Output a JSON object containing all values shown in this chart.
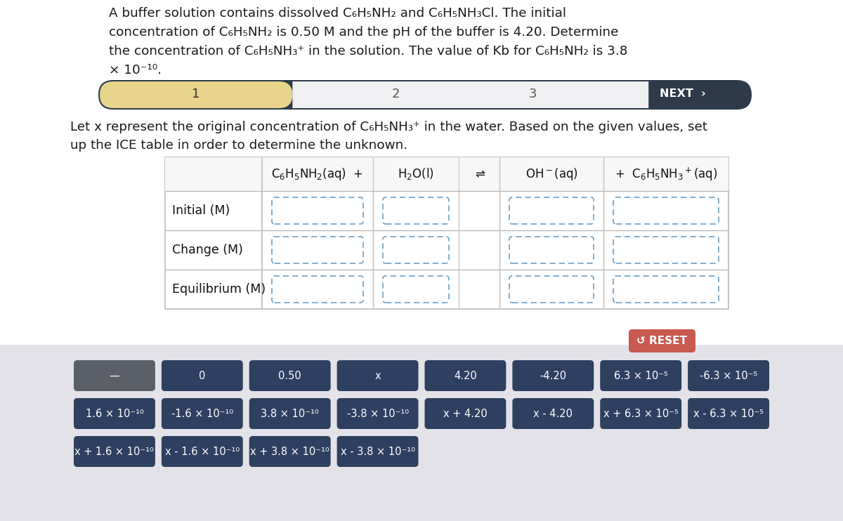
{
  "bg_color": "#ffffff",
  "bottom_bg_color": "#e2e2e8",
  "nav_bg": "#2e3a4a",
  "nav_highlight": "#e8d48a",
  "nav_light": "#f0f0f2",
  "reset_color": "#c85a50",
  "btn_color_dark": "#2e4060",
  "btn_color_gray": "#5a5f68",
  "title_lines": [
    "A buffer solution contains dissolved C₆H₅NH₂ and C₆H₅NH₃Cl. The initial",
    "concentration of C₆H₅NH₂ is 0.50 M and the pH of the buffer is 4.20. Determine",
    "the concentration of C₆H₅NH₃⁺ in the solution. The value of Kb for C₆H₅NH₂ is 3.8",
    "× 10⁻¹⁰."
  ],
  "inst_lines": [
    "Let x represent the original concentration of C₆H₅NH₃⁺ in the water. Based on the given values, set",
    "up the ICE table in order to determine the unknown."
  ],
  "row_labels": [
    "Initial (M)",
    "Change (M)",
    "Equilibrium (M)"
  ],
  "btn_rows": [
    [
      "—",
      "0",
      "0.50",
      "x",
      "4.20",
      "-4.20",
      "6.3 × 10⁻⁵",
      "-6.3 × 10⁻⁵"
    ],
    [
      "1.6 × 10⁻¹⁰",
      "-1.6 × 10⁻¹⁰",
      "3.8 × 10⁻¹⁰",
      "-3.8 × 10⁻¹⁰",
      "x + 4.20",
      "x - 4.20",
      "x + 6.3 × 10⁻⁵",
      "x - 6.3 × 10⁻⁵"
    ],
    [
      "x + 1.6 × 10⁻¹⁰",
      "x - 1.6 × 10⁻¹⁰",
      "x + 3.8 × 10⁻¹⁰",
      "x - 3.8 × 10⁻¹⁰"
    ]
  ],
  "figsize": [
    12.0,
    7.42
  ],
  "dpi": 100
}
